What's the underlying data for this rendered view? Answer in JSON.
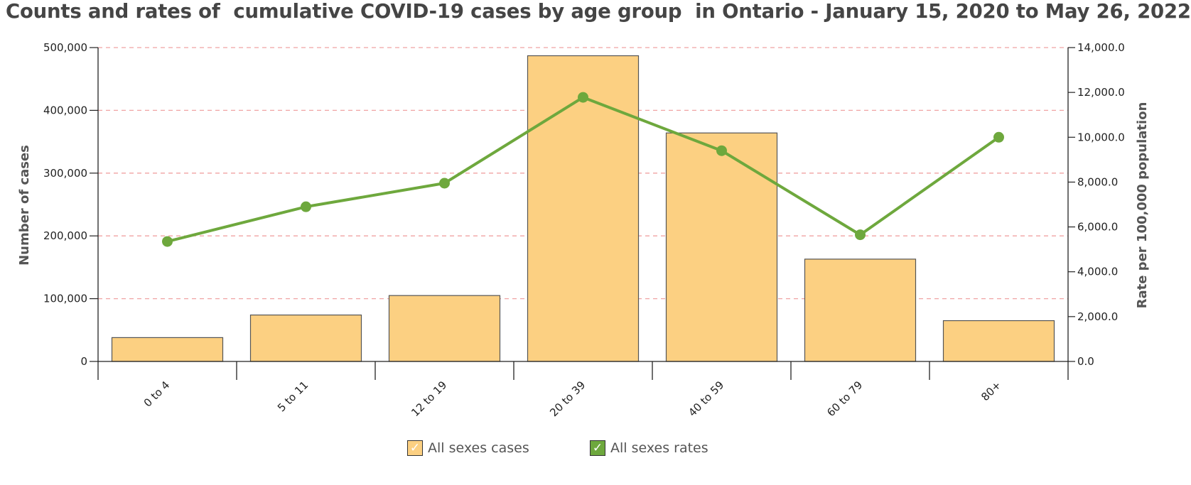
{
  "chart_data": {
    "type": "bar",
    "title": "Counts and rates of  cumulative COVID-19 cases by age group  in Ontario - January 15, 2020 to May 26, 2022",
    "categories": [
      "0 to 4",
      "5 to 11",
      "12 to 19",
      "20 to 39",
      "40 to 59",
      "60 to 79",
      "80+"
    ],
    "series": [
      {
        "name": "All sexes cases",
        "type": "bar",
        "axis": "left",
        "color": "#fcd082",
        "values": [
          38000,
          74000,
          105000,
          487000,
          364000,
          163000,
          65000
        ]
      },
      {
        "name": "All sexes rates",
        "type": "line",
        "axis": "right",
        "color": "#6ea83d",
        "values": [
          5350,
          6900,
          7950,
          11780,
          9400,
          5650,
          10000
        ]
      }
    ],
    "ylabel": "Number of cases",
    "y2label": "Rate per 100,000 population",
    "ylim": [
      0,
      500000
    ],
    "y2lim": [
      0,
      14000
    ],
    "yticks": [
      "0",
      "100,000",
      "200,000",
      "300,000",
      "400,000",
      "500,000"
    ],
    "y2ticks": [
      "0.0",
      "2,000.0",
      "4,000.0",
      "6,000.0",
      "8,000.0",
      "10,000.0",
      "12,000.0",
      "14,000.0"
    ],
    "grid": true,
    "legend": "bottom-center"
  },
  "legend_check": "✓"
}
